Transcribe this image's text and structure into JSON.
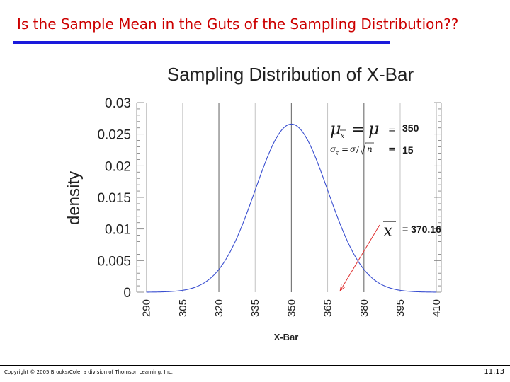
{
  "slide": {
    "title": "Is the Sample Mean in the Guts of the Sampling Distribution??",
    "footer": "Copyright © 2005 Brooks/Cole, a division of Thomson Learning, Inc.",
    "slide_number": "11.13"
  },
  "colors": {
    "title": "#cc0000",
    "title_rule": "#1a1adc",
    "curve": "#3a4fd0",
    "arrow": "#e03030",
    "gridline": "#888888"
  },
  "chart_data": {
    "type": "line",
    "title": "Sampling Distribution of X-Bar",
    "xlabel": "X-Bar",
    "ylabel": "density",
    "xlim": [
      286,
      412
    ],
    "ylim": [
      0,
      0.03
    ],
    "x_ticks": [
      "290",
      "305",
      "320",
      "335",
      "350",
      "365",
      "380",
      "395",
      "410"
    ],
    "y_ticks": [
      "0",
      "0.005",
      "0.01",
      "0.015",
      "0.02",
      "0.025",
      "0.03"
    ],
    "grid": true,
    "series": [
      {
        "mean": 350,
        "sd": 15,
        "x_range": [
          290,
          410
        ]
      }
    ],
    "annotations": {
      "mean_value": "350",
      "se_value": "15",
      "sample_mean_label": "= 370.16",
      "sample_mean": 370.16
    }
  }
}
